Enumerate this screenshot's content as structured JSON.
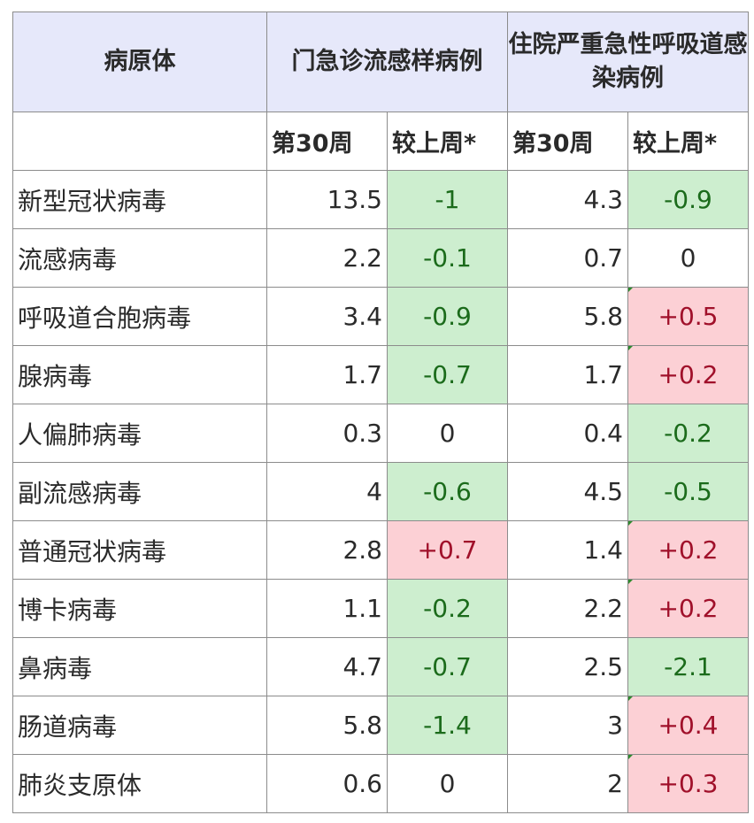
{
  "header": {
    "pathogen": "病原体",
    "outpatient": "门急诊流感样病例",
    "inpatient": "住院严重急性呼吸道感染病例",
    "week": "第30周",
    "vs_last_week": "较上周*"
  },
  "rows": [
    {
      "name": "新型冠状病毒",
      "op": "13.5",
      "op_chg": "-1",
      "ip": "4.3",
      "ip_chg": "-0.9"
    },
    {
      "name": "流感病毒",
      "op": "2.2",
      "op_chg": "-0.1",
      "ip": "0.7",
      "ip_chg": "0"
    },
    {
      "name": "呼吸道合胞病毒",
      "op": "3.4",
      "op_chg": "-0.9",
      "ip": "5.8",
      "ip_chg": "+0.5"
    },
    {
      "name": "腺病毒",
      "op": "1.7",
      "op_chg": "-0.7",
      "ip": "1.7",
      "ip_chg": "+0.2"
    },
    {
      "name": "人偏肺病毒",
      "op": "0.3",
      "op_chg": "0",
      "ip": "0.4",
      "ip_chg": "-0.2"
    },
    {
      "name": "副流感病毒",
      "op": "4",
      "op_chg": "-0.6",
      "ip": "4.5",
      "ip_chg": "-0.5"
    },
    {
      "name": "普通冠状病毒",
      "op": "2.8",
      "op_chg": "+0.7",
      "ip": "1.4",
      "ip_chg": "+0.2"
    },
    {
      "name": "博卡病毒",
      "op": "1.1",
      "op_chg": "-0.2",
      "ip": "2.2",
      "ip_chg": "+0.2"
    },
    {
      "name": "鼻病毒",
      "op": "4.7",
      "op_chg": "-0.7",
      "ip": "2.5",
      "ip_chg": "-2.1"
    },
    {
      "name": "肠道病毒",
      "op": "5.8",
      "op_chg": "-1.4",
      "ip": "3",
      "ip_chg": "+0.4"
    },
    {
      "name": "肺炎支原体",
      "op": "0.6",
      "op_chg": "0",
      "ip": "2",
      "ip_chg": "+0.3"
    }
  ],
  "colors": {
    "header_bg": "#e6e8fa",
    "decrease_bg": "#cdeecf",
    "decrease_text": "#1b6b1b",
    "increase_bg": "#fcd0d5",
    "increase_text": "#a0102a",
    "grid": "#8c8c8c"
  }
}
